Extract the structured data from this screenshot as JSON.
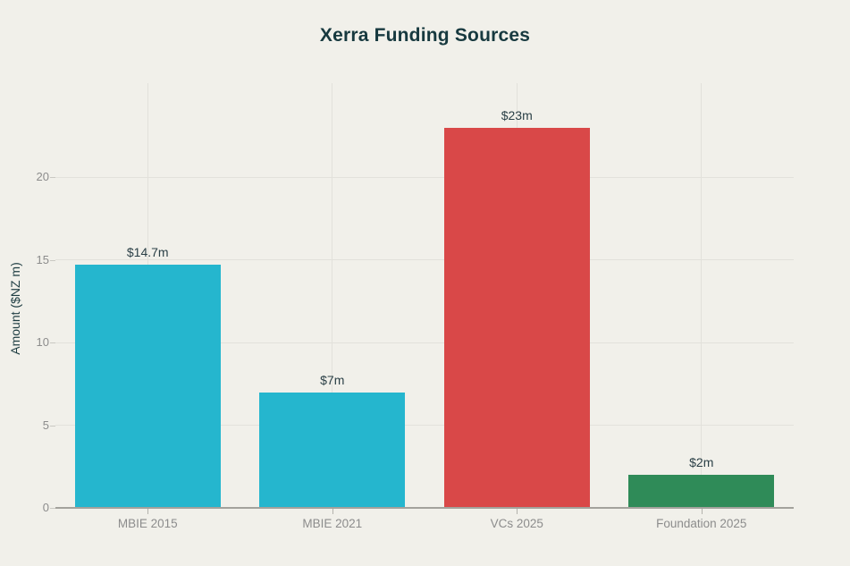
{
  "chart_data": {
    "type": "bar",
    "title": "Xerra Funding Sources",
    "xlabel": "",
    "ylabel": "Amount ($NZ m)",
    "categories": [
      "MBIE 2015",
      "MBIE 2021",
      "VCs 2025",
      "Foundation 2025"
    ],
    "values": [
      14.7,
      7,
      23,
      2
    ],
    "value_labels": [
      "$14.7m",
      "$7m",
      "$23m",
      "$2m"
    ],
    "bar_colors": [
      "#25b6ce",
      "#25b6ce",
      "#d94848",
      "#2f8b58"
    ],
    "yticks": [
      0,
      5,
      10,
      15,
      20
    ],
    "ylim": [
      0,
      25.7
    ],
    "grid": true,
    "legend": "none",
    "colors": {
      "background": "#f1f0ea",
      "title_text": "#17393f",
      "axis_text": "#8c8c8c",
      "value_text": "#2a3f46",
      "gridline": "#e2e1db",
      "axis_line": "#a3a29c",
      "cyan_bar": "#25b6ce",
      "red_bar": "#d94848",
      "green_bar": "#2f8b58"
    }
  }
}
